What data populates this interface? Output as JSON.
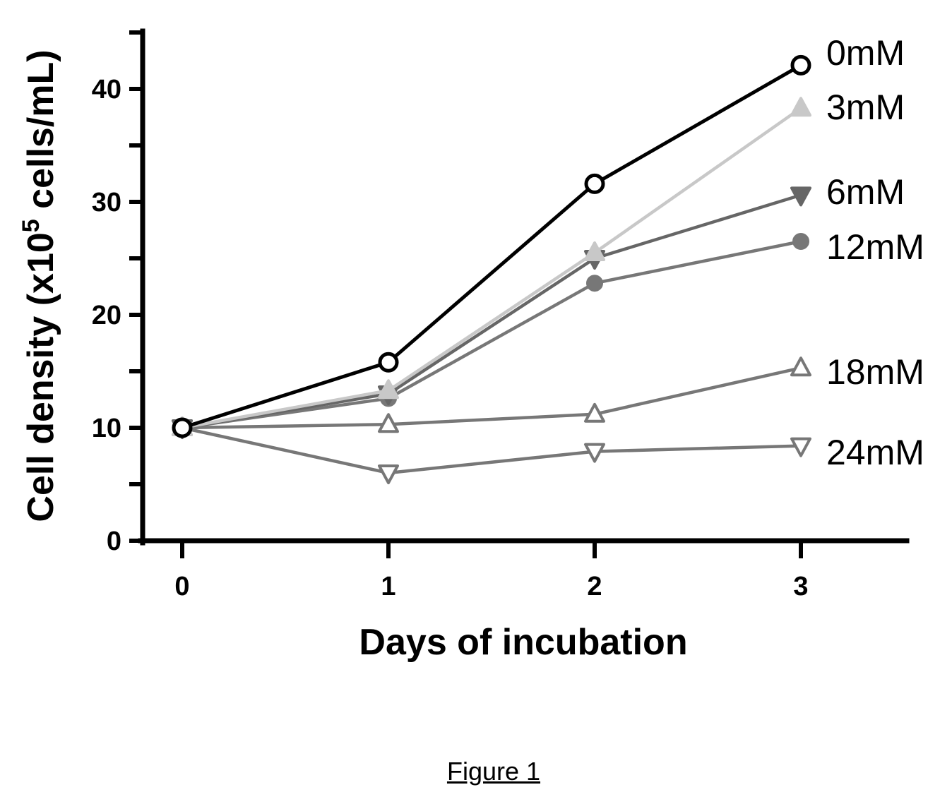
{
  "caption": "Figure 1",
  "chart_data": {
    "type": "line",
    "xlabel": "Days of incubation",
    "ylabel_main": "Cell density (x10",
    "ylabel_sup": "5",
    "ylabel_tail": " cells/mL)",
    "x": [
      0,
      1,
      2,
      3
    ],
    "xticks": [
      "0",
      "1",
      "2",
      "3"
    ],
    "yticks": [
      "0",
      "10",
      "20",
      "30",
      "40"
    ],
    "xlim": [
      0,
      3
    ],
    "ylim": [
      0,
      45
    ],
    "grid": false,
    "legend": "direct labels at line ends",
    "series": [
      {
        "name": "0mM",
        "values": [
          10,
          15.8,
          31.6,
          42.1
        ],
        "color": "#000000",
        "marker": "circle-open"
      },
      {
        "name": "3mM",
        "values": [
          10,
          13.3,
          25.5,
          38.3
        ],
        "color": "#c8c8c8",
        "marker": "triangle-up-filled"
      },
      {
        "name": "6mM",
        "values": [
          10,
          13.0,
          25.0,
          30.6
        ],
        "color": "#666666",
        "marker": "triangle-down-filled"
      },
      {
        "name": "12mM",
        "values": [
          10,
          12.6,
          22.8,
          26.5
        ],
        "color": "#777777",
        "marker": "circle-filled"
      },
      {
        "name": "18mM",
        "values": [
          10,
          10.3,
          11.2,
          15.3
        ],
        "color": "#777777",
        "marker": "triangle-up-open"
      },
      {
        "name": "24mM",
        "values": [
          10,
          6.0,
          7.9,
          8.4
        ],
        "color": "#777777",
        "marker": "triangle-down-open"
      }
    ]
  }
}
